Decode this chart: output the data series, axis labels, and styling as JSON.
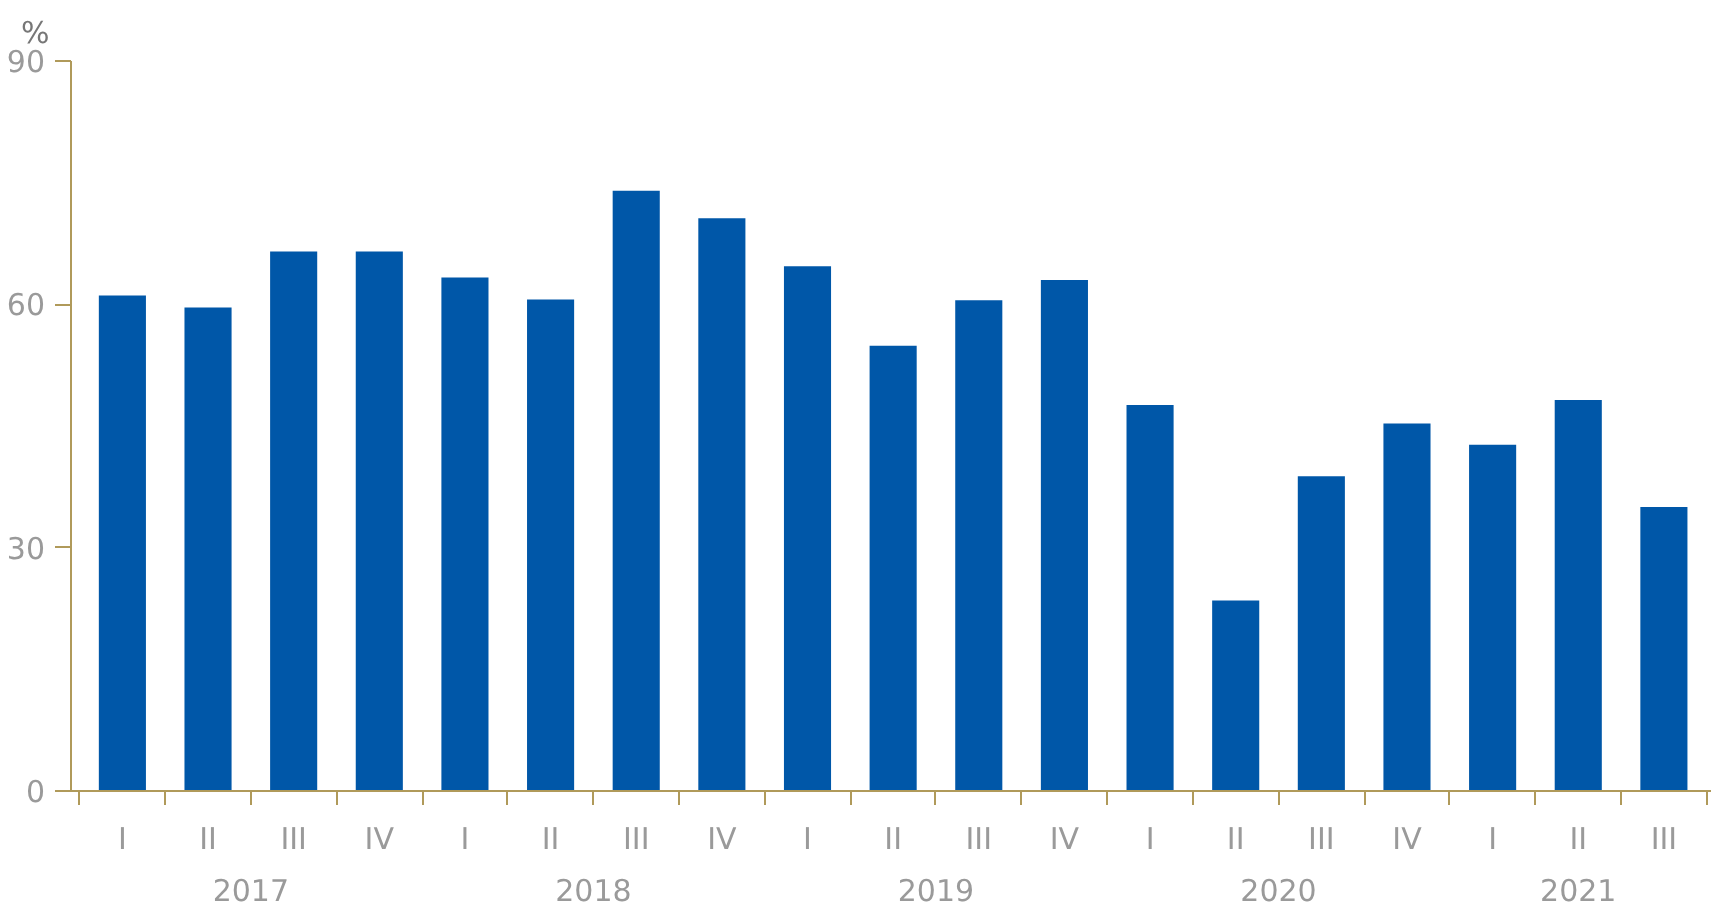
{
  "chart_data": {
    "type": "bar",
    "ylabel": "%",
    "categories": [
      "I",
      "II",
      "III",
      "IV",
      "I",
      "II",
      "III",
      "IV",
      "I",
      "II",
      "III",
      "IV",
      "I",
      "II",
      "III",
      "IV",
      "I",
      "II",
      "III"
    ],
    "values": [
      61.1,
      59.6,
      66.5,
      66.5,
      63.3,
      60.6,
      74.0,
      70.6,
      64.7,
      54.9,
      60.5,
      63.0,
      47.6,
      23.5,
      38.8,
      45.3,
      42.7,
      48.2,
      35.0
    ],
    "color": "#0057a8",
    "annotations": [
      "2017",
      "2018",
      "2019",
      "2020",
      "2021"
    ],
    "ylim": [
      0,
      90
    ],
    "yticks": [
      0,
      30,
      60,
      90
    ],
    "grid": false
  }
}
